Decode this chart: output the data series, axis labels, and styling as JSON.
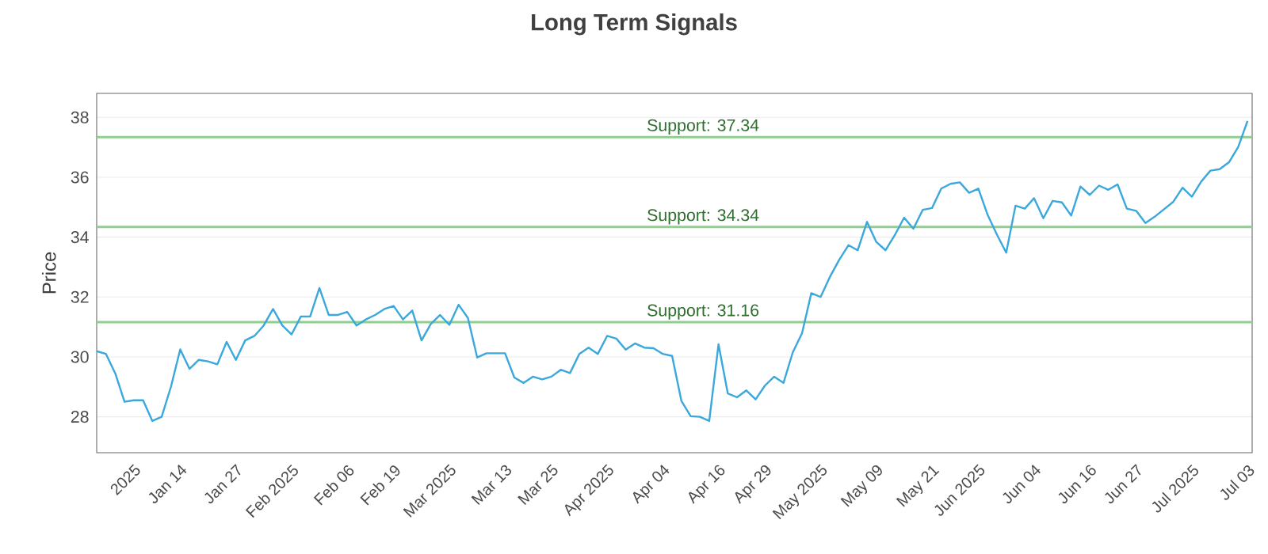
{
  "chart_data": {
    "type": "line",
    "title": "Long Term Signals",
    "ylabel": "Price",
    "categories": [
      null,
      null,
      null,
      null,
      "2025",
      null,
      null,
      null,
      null,
      "Jan 14",
      null,
      null,
      null,
      null,
      null,
      "Jan 27",
      null,
      null,
      null,
      null,
      null,
      "Feb 2025",
      null,
      null,
      null,
      null,
      null,
      "Feb 06",
      null,
      null,
      null,
      null,
      "Feb 19",
      null,
      null,
      null,
      null,
      null,
      "Mar 2025",
      null,
      null,
      null,
      null,
      null,
      "Mar 13",
      null,
      null,
      null,
      null,
      "Mar 25",
      null,
      null,
      null,
      null,
      null,
      "Apr 2025",
      null,
      null,
      null,
      null,
      null,
      "Apr 04",
      null,
      null,
      null,
      null,
      null,
      "Apr 16",
      null,
      null,
      null,
      null,
      "Apr 29",
      null,
      null,
      null,
      null,
      null,
      "May 2025",
      null,
      null,
      null,
      null,
      null,
      "May 09",
      null,
      null,
      null,
      null,
      null,
      "May 21",
      null,
      null,
      null,
      null,
      "Jun 2025",
      null,
      null,
      null,
      null,
      null,
      "Jun 04",
      null,
      null,
      null,
      null,
      null,
      "Jun 16",
      null,
      null,
      null,
      null,
      "Jun 27",
      null,
      null,
      null,
      null,
      null,
      "Jul 2025",
      null,
      null,
      null,
      null,
      null,
      "Jul 03"
    ],
    "series": [
      {
        "color": "#3aa8dc",
        "values": [
          30.19,
          30.1,
          29.45,
          28.5,
          28.55,
          28.55,
          27.86,
          28.0,
          29.0,
          30.25,
          29.6,
          29.9,
          29.85,
          29.75,
          30.5,
          29.9,
          30.55,
          30.7,
          31.05,
          31.6,
          31.05,
          30.75,
          31.35,
          31.35,
          32.3,
          31.4,
          31.4,
          31.5,
          31.05,
          31.25,
          31.4,
          31.6,
          31.7,
          31.25,
          31.55,
          30.55,
          31.1,
          31.4,
          31.07,
          31.74,
          31.3,
          29.98,
          30.12,
          30.12,
          30.12,
          29.31,
          29.13,
          29.34,
          29.25,
          29.34,
          29.57,
          29.46,
          30.1,
          30.31,
          30.1,
          30.7,
          30.61,
          30.24,
          30.45,
          30.31,
          30.29,
          30.1,
          30.03,
          28.53,
          28.02,
          28.0,
          27.86,
          30.42,
          28.78,
          28.65,
          28.88,
          28.58,
          29.04,
          29.34,
          29.13,
          30.15,
          30.79,
          32.13,
          32.0,
          32.67,
          33.24,
          33.73,
          33.56,
          34.51,
          33.84,
          33.56,
          34.07,
          34.65,
          34.28,
          34.91,
          34.97,
          35.62,
          35.78,
          35.83,
          35.48,
          35.62,
          34.74,
          34.08,
          33.48,
          35.05,
          34.95,
          35.3,
          34.63,
          35.21,
          35.16,
          34.72,
          35.69,
          35.41,
          35.72,
          35.58,
          35.76,
          34.95,
          34.88,
          34.47,
          34.68,
          34.93,
          35.18,
          35.65,
          35.35,
          35.85,
          36.22,
          36.27,
          36.5,
          37.01,
          37.88
        ]
      }
    ],
    "ylim": [
      26.8,
      38.8
    ],
    "yticks": [
      28,
      30,
      32,
      34,
      36,
      38
    ],
    "grid": "y",
    "ref_lines": [
      {
        "axis": "y",
        "value": 37.34,
        "label": "Support: 37.34",
        "color": "#8fcf8f"
      },
      {
        "axis": "y",
        "value": 34.34,
        "label": "Support: 34.34",
        "color": "#8fcf8f"
      },
      {
        "axis": "y",
        "value": 31.16,
        "label": "Support: 31.16",
        "color": "#8fcf8f"
      }
    ]
  }
}
